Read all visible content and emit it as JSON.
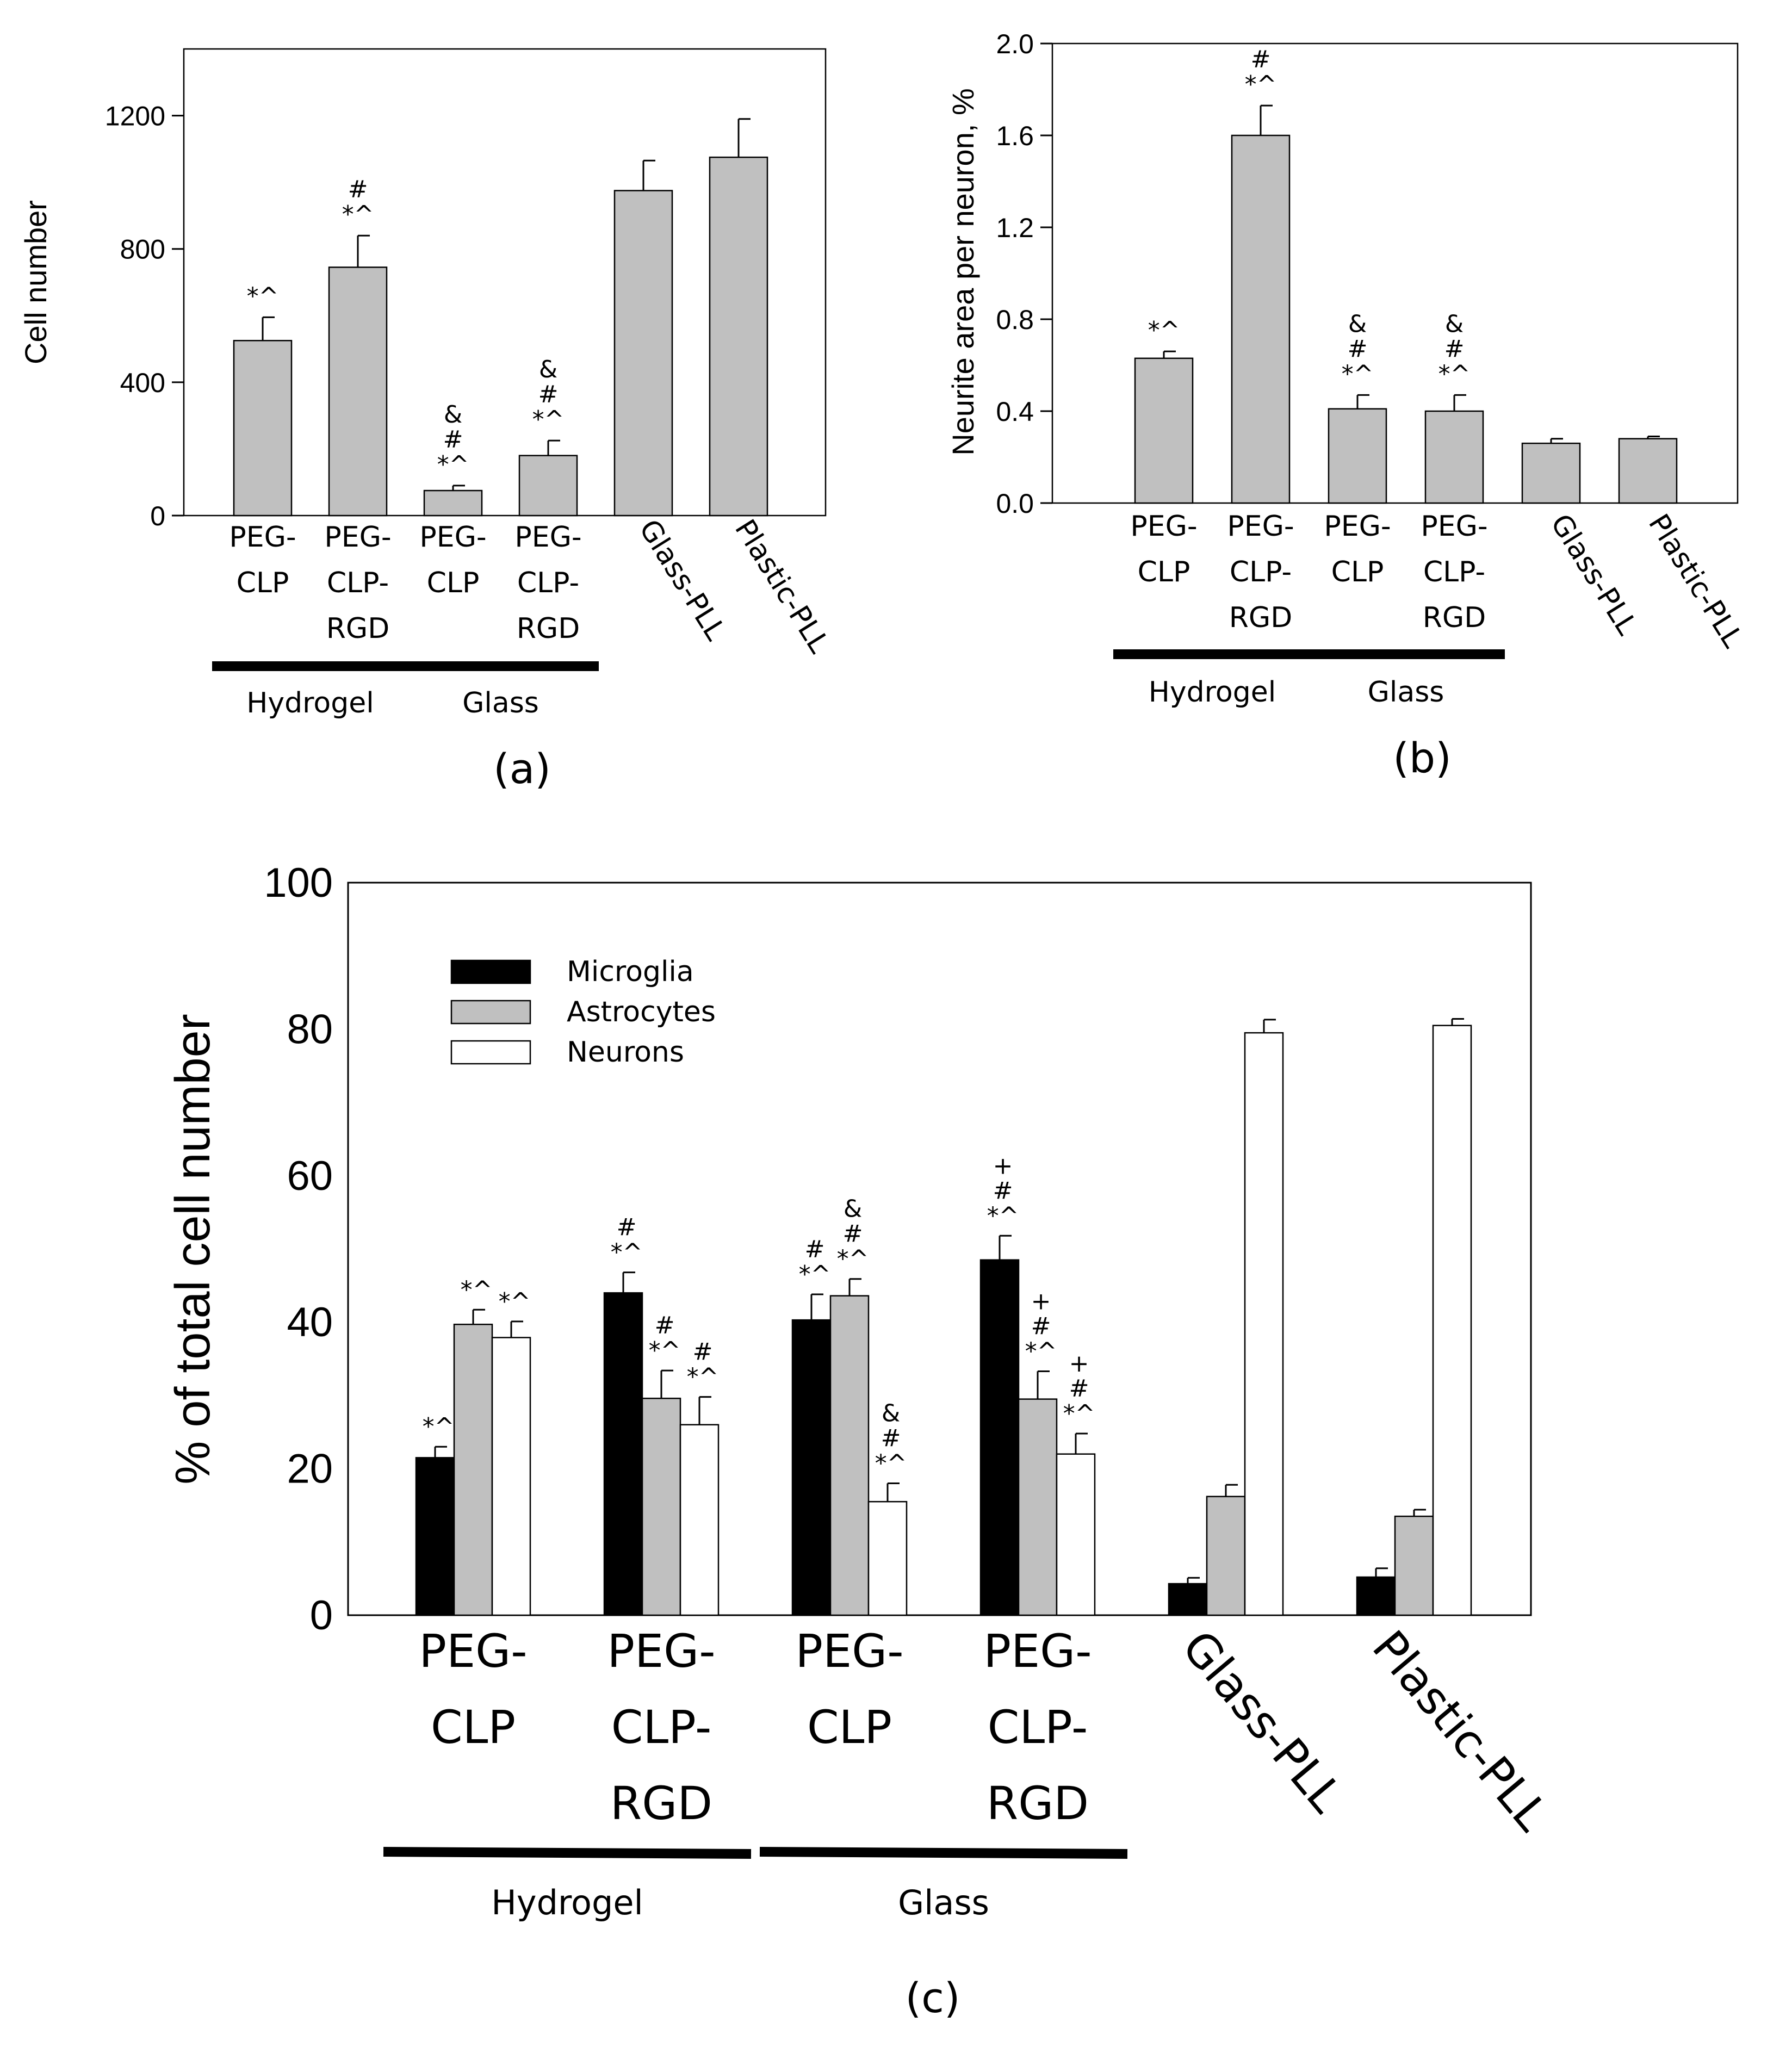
{
  "chart_data": [
    {
      "panel": "(a)",
      "type": "bar",
      "ylabel": "Cell number",
      "ylim": [
        0,
        1400
      ],
      "yticks": [
        0,
        400,
        800,
        1200
      ],
      "categories": [
        [
          "PEG-",
          "CLP"
        ],
        [
          "PEG-",
          "CLP-",
          "RGD"
        ],
        [
          "PEG-",
          "CLP"
        ],
        [
          "PEG-",
          "CLP-",
          "RGD"
        ],
        [
          "Glass-PLL"
        ],
        [
          "Plastic-PLL"
        ]
      ],
      "category_rotated": [
        false,
        false,
        false,
        false,
        true,
        true
      ],
      "values": [
        525,
        745,
        75,
        180,
        975,
        1075
      ],
      "errors": [
        70,
        95,
        15,
        45,
        90,
        115
      ],
      "annotations": [
        [
          "*^"
        ],
        [
          "#",
          "*^"
        ],
        [
          "&",
          "#",
          "*^"
        ],
        [
          "&",
          "#",
          "*^"
        ],
        [],
        []
      ],
      "groups": [
        {
          "label": "Hydrogel",
          "from": 0,
          "to": 1
        },
        {
          "label": "Glass",
          "from": 2,
          "to": 3
        }
      ],
      "bar_color": "#c0c0c0"
    },
    {
      "panel": "(b)",
      "type": "bar",
      "ylabel": "Neurite area per neuron, %",
      "ylim": [
        0,
        2.0
      ],
      "yticks": [
        "0.0",
        "0.4",
        "0.8",
        "1.2",
        "1.6",
        "2.0"
      ],
      "categories": [
        [
          "PEG-",
          "CLP"
        ],
        [
          "PEG-",
          "CLP-",
          "RGD"
        ],
        [
          "PEG-",
          "CLP"
        ],
        [
          "PEG-",
          "CLP-",
          "RGD"
        ],
        [
          "Glass-PLL"
        ],
        [
          "Plastic-PLL"
        ]
      ],
      "category_rotated": [
        false,
        false,
        false,
        false,
        true,
        true
      ],
      "values": [
        0.63,
        1.6,
        0.41,
        0.4,
        0.26,
        0.28
      ],
      "errors": [
        0.03,
        0.13,
        0.06,
        0.07,
        0.02,
        0.01
      ],
      "annotations": [
        [
          "*^"
        ],
        [
          "#",
          "*^"
        ],
        [
          "&",
          "#",
          "*^"
        ],
        [
          "&",
          "#",
          "*^"
        ],
        [],
        []
      ],
      "groups": [
        {
          "label": "Hydrogel",
          "from": 0,
          "to": 1
        },
        {
          "label": "Glass",
          "from": 2,
          "to": 3
        }
      ],
      "bar_color": "#c0c0c0"
    },
    {
      "panel": "(c)",
      "type": "bar",
      "ylabel": "% of total cell number",
      "ylim": [
        0,
        100
      ],
      "yticks": [
        0,
        20,
        40,
        60,
        80,
        100
      ],
      "categories": [
        [
          "PEG-",
          "CLP"
        ],
        [
          "PEG-",
          "CLP-",
          "RGD"
        ],
        [
          "PEG-",
          "CLP"
        ],
        [
          "PEG-",
          "CLP-",
          "RGD"
        ],
        [
          "Glass-PLL"
        ],
        [
          "Plastic-PLL"
        ]
      ],
      "category_rotated": [
        false,
        false,
        false,
        false,
        true,
        true
      ],
      "groups": [
        {
          "label": "Hydrogel",
          "from": 0,
          "to": 1
        },
        {
          "label": "Glass",
          "from": 2,
          "to": 3
        }
      ],
      "legend_position": "top-left",
      "series": [
        {
          "name": "Microglia",
          "color": "#000000",
          "values": [
            21.5,
            44,
            40.3,
            48.5,
            4.3,
            5.2
          ],
          "errors": [
            1.5,
            2.8,
            3.5,
            3.3,
            0.8,
            1.2
          ],
          "annotations": [
            [
              "*^"
            ],
            [
              "#",
              "*^"
            ],
            [
              "#",
              "*^"
            ],
            [
              "+",
              "#",
              "*^"
            ],
            [],
            []
          ]
        },
        {
          "name": "Astrocytes",
          "color": "#c0c0c0",
          "values": [
            39.7,
            29.6,
            43.6,
            29.5,
            16.2,
            13.5
          ],
          "errors": [
            2.0,
            3.8,
            2.3,
            3.8,
            1.6,
            0.9
          ],
          "annotations": [
            [
              "*^"
            ],
            [
              "#",
              "*^"
            ],
            [
              "&",
              "#",
              "*^"
            ],
            [
              "+",
              "#",
              "*^"
            ],
            [],
            []
          ]
        },
        {
          "name": "Neurons",
          "color": "#ffffff",
          "values": [
            37.9,
            26.0,
            15.5,
            22.0,
            79.5,
            80.5
          ],
          "errors": [
            2.2,
            3.8,
            2.5,
            2.8,
            1.8,
            0.9
          ],
          "annotations": [
            [
              "*^"
            ],
            [
              "#",
              "*^"
            ],
            [
              "&",
              "#",
              "*^"
            ],
            [
              "+",
              "#",
              "*^"
            ],
            [],
            []
          ]
        }
      ]
    }
  ]
}
